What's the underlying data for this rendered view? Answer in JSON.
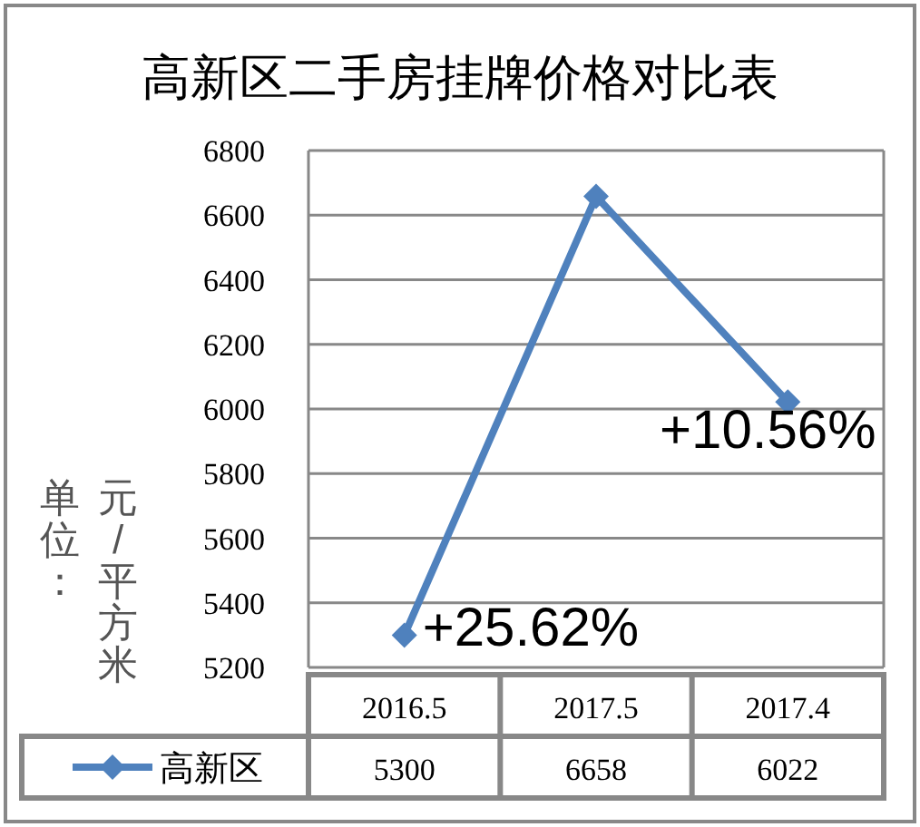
{
  "chart_data": {
    "type": "line",
    "title": "高新区二手房挂牌价格对比表",
    "ylabel": "单位：元/平方米",
    "categories": [
      "2016.5",
      "2017.5",
      "2017.4"
    ],
    "series": [
      {
        "name": "高新区",
        "color": "#4f81bd",
        "values": [
          5300,
          6658,
          6022
        ]
      }
    ],
    "ylim": [
      5200,
      6800
    ],
    "yticks": [
      5200,
      5400,
      5600,
      5800,
      6000,
      6200,
      6400,
      6600,
      6800
    ],
    "grid": "y",
    "marker": "diamond",
    "line_style": "solid",
    "data_labels": true,
    "legend": "bottom left",
    "annotations": [
      "+25.62%",
      "+10.56%"
    ]
  }
}
